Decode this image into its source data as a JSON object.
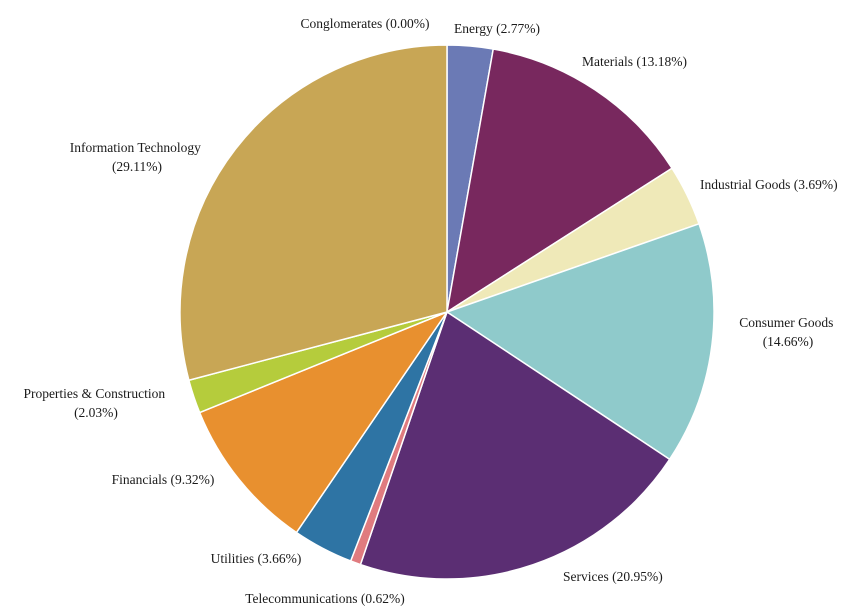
{
  "chart_data": {
    "type": "pie",
    "start_angle_deg": 0,
    "direction": "clockwise",
    "slices": [
      {
        "name": "Conglomerates",
        "value": 0.0,
        "label": "Conglomerates (0.00%)",
        "color": "#6b7ab5"
      },
      {
        "name": "Energy",
        "value": 2.77,
        "label": "Energy (2.77%)",
        "color": "#6b7ab5"
      },
      {
        "name": "Materials",
        "value": 13.18,
        "label": "Materials (13.18%)",
        "color": "#78285e"
      },
      {
        "name": "Industrial Goods",
        "value": 3.69,
        "label": "Industrial Goods (3.69%)",
        "color": "#efe9b8"
      },
      {
        "name": "Consumer Goods",
        "value": 14.66,
        "label": "Consumer Goods (14.66%)",
        "color": "#8fcacb"
      },
      {
        "name": "Services",
        "value": 20.95,
        "label": "Services (20.95%)",
        "color": "#5b2e73"
      },
      {
        "name": "Telecommunications",
        "value": 0.62,
        "label": "Telecommunications (0.62%)",
        "color": "#e07b7f"
      },
      {
        "name": "Utilities",
        "value": 3.66,
        "label": "Utilities (3.66%)",
        "color": "#2e74a4"
      },
      {
        "name": "Financials",
        "value": 9.32,
        "label": "Financials (9.32%)",
        "color": "#e8902f"
      },
      {
        "name": "Properties & Construction",
        "value": 2.03,
        "label": "Properties & Construction (2.03%)",
        "color": "#b5cc3c"
      },
      {
        "name": "Information Technology",
        "value": 29.11,
        "label": "Information Technology (29.11%)",
        "color": "#c8a655"
      }
    ]
  }
}
